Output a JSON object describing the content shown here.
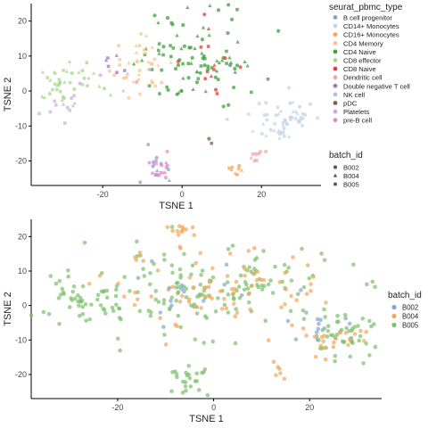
{
  "chart_data": [
    {
      "type": "scatter",
      "xlabel": "TSNE 1",
      "ylabel": "TSNE 2",
      "xlim": [
        -38,
        35
      ],
      "ylim": [
        -27,
        25
      ],
      "x_ticks": [
        -20,
        0,
        20
      ],
      "y_ticks": [
        -20,
        -10,
        0,
        10,
        20
      ],
      "legend_placement": "right",
      "color_legend": {
        "title": "seurat_pbmc_type",
        "items": [
          {
            "label": "B cell progenitor",
            "color": "#7fa7cf"
          },
          {
            "label": "CD14+ Monocytes",
            "color": "#c4d3ea"
          },
          {
            "label": "CD16+ Monocytes",
            "color": "#f4a55a"
          },
          {
            "label": "CD4 Memory",
            "color": "#f9c68d"
          },
          {
            "label": "CD4 Naive",
            "color": "#3f9f3a"
          },
          {
            "label": "CD8 effector",
            "color": "#a4d98b"
          },
          {
            "label": "CD8 Naive",
            "color": "#d6423a"
          },
          {
            "label": "Dendritic cell",
            "color": "#f6a3a2"
          },
          {
            "label": "Double negative T cell",
            "color": "#9b7ab6"
          },
          {
            "label": "NK cell",
            "color": "#c6b6d8"
          },
          {
            "label": "pDC",
            "color": "#8c5b4a"
          },
          {
            "label": "Platelets",
            "color": "#d8a8c8"
          },
          {
            "label": "pre-B cell",
            "color": "#e28ac8"
          }
        ]
      },
      "shape_legend": {
        "title": "batch_id",
        "items": [
          {
            "label": "B002",
            "shape": "circle"
          },
          {
            "label": "B004",
            "shape": "triangle"
          },
          {
            "label": "B005",
            "shape": "square"
          }
        ]
      },
      "clusters": [
        {
          "type": "CD4 Naive",
          "cx": 3,
          "cy": 9,
          "sx": 8,
          "sy": 7,
          "n": 95
        },
        {
          "type": "CD4 Memory",
          "cx": -10,
          "cy": 7,
          "sx": 4,
          "sy": 5,
          "n": 34
        },
        {
          "type": "CD8 effector",
          "cx": -28,
          "cy": 2,
          "sx": 5,
          "sy": 3,
          "n": 40
        },
        {
          "type": "CD8 Naive",
          "cx": 5,
          "cy": 7,
          "sx": 5,
          "sy": 6,
          "n": 14
        },
        {
          "type": "CD14+ Monocytes",
          "cx": 26,
          "cy": -8,
          "sx": 4,
          "sy": 3,
          "n": 55
        },
        {
          "type": "NK cell",
          "cx": -30,
          "cy": -4,
          "sx": 3,
          "sy": 2,
          "n": 12
        },
        {
          "type": "B cell progenitor",
          "cx": -6,
          "cy": -22,
          "sx": 2,
          "sy": 2,
          "n": 10
        },
        {
          "type": "pre-B cell",
          "cx": -6,
          "cy": -22,
          "sx": 2,
          "sy": 2,
          "n": 18
        },
        {
          "type": "Dendritic cell",
          "cx": 20,
          "cy": -18,
          "sx": 1.5,
          "sy": 1,
          "n": 8
        },
        {
          "type": "CD16+ Monocytes",
          "cx": 13,
          "cy": -22,
          "sx": 1.2,
          "sy": 1,
          "n": 8
        },
        {
          "type": "Double negative T cell",
          "cx": -17,
          "cy": 9,
          "sx": 1.5,
          "sy": 1.5,
          "n": 6
        },
        {
          "type": "Platelets",
          "cx": -16,
          "cy": 4,
          "sx": 4,
          "sy": 3,
          "n": 5
        },
        {
          "type": "pDC",
          "cx": 7,
          "cy": -15,
          "sx": 0.5,
          "sy": 0.5,
          "n": 2
        }
      ]
    },
    {
      "type": "scatter",
      "xlabel": "TSNE 1",
      "ylabel": "TSNE 2",
      "xlim": [
        -38,
        35
      ],
      "ylim": [
        -27,
        25
      ],
      "x_ticks": [
        -20,
        0,
        20
      ],
      "y_ticks": [
        -20,
        -10,
        0,
        10,
        20
      ],
      "legend_placement": "right",
      "legend": {
        "title": "batch_id",
        "items": [
          {
            "label": "B002",
            "color": "#7fa7cf"
          },
          {
            "label": "B004",
            "color": "#f4a55a"
          },
          {
            "label": "B005",
            "color": "#7ac16a"
          }
        ]
      },
      "clusters": [
        {
          "batch": "B005",
          "cx": -3,
          "cy": 5,
          "sx": 14,
          "sy": 6,
          "n": 160
        },
        {
          "batch": "B004",
          "cx": 2,
          "cy": 4,
          "sx": 12,
          "sy": 6,
          "n": 80
        },
        {
          "batch": "B005",
          "cx": -28,
          "cy": 0,
          "sx": 4,
          "sy": 3,
          "n": 40
        },
        {
          "batch": "B005",
          "cx": 27,
          "cy": -9,
          "sx": 4,
          "sy": 3,
          "n": 50
        },
        {
          "batch": "B004",
          "cx": 25,
          "cy": -10,
          "sx": 4,
          "sy": 3,
          "n": 20
        },
        {
          "batch": "B002",
          "cx": 22,
          "cy": -5,
          "sx": 3,
          "sy": 2,
          "n": 12
        },
        {
          "batch": "B005",
          "cx": -5,
          "cy": -22,
          "sx": 2,
          "sy": 2,
          "n": 25
        },
        {
          "batch": "B004",
          "cx": -6,
          "cy": 22,
          "sx": 1.5,
          "sy": 1,
          "n": 12
        },
        {
          "batch": "B004",
          "cx": 13,
          "cy": -19,
          "sx": 1.5,
          "sy": 1.5,
          "n": 6
        },
        {
          "batch": "B002",
          "cx": -3,
          "cy": 3,
          "sx": 10,
          "sy": 5,
          "n": 15
        }
      ]
    }
  ]
}
